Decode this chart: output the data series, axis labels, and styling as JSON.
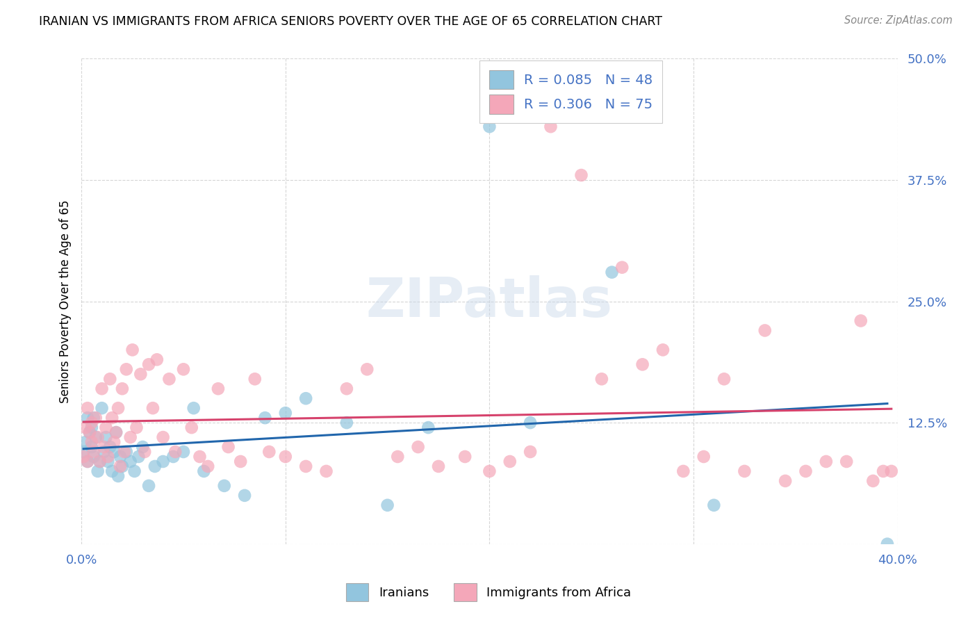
{
  "title": "IRANIAN VS IMMIGRANTS FROM AFRICA SENIORS POVERTY OVER THE AGE OF 65 CORRELATION CHART",
  "source": "Source: ZipAtlas.com",
  "ylabel": "Seniors Poverty Over the Age of 65",
  "xlim": [
    0.0,
    0.4
  ],
  "ylim": [
    0.0,
    0.5
  ],
  "xticks": [
    0.0,
    0.1,
    0.2,
    0.3,
    0.4
  ],
  "yticks": [
    0.0,
    0.125,
    0.25,
    0.375,
    0.5
  ],
  "xticklabels": [
    "0.0%",
    "",
    "",
    "",
    "40.0%"
  ],
  "yticklabels": [
    "",
    "12.5%",
    "25.0%",
    "37.5%",
    "50.0%"
  ],
  "iranians_R": 0.085,
  "iranians_N": 48,
  "africa_R": 0.306,
  "africa_N": 75,
  "iranians_color": "#92c5de",
  "iranians_line_color": "#2166ac",
  "africa_color": "#f4a7b9",
  "africa_line_color": "#d6426c",
  "legend_label_iranians": "Iranians",
  "legend_label_africa": "Immigrants from Africa",
  "iranians_x": [
    0.001,
    0.002,
    0.003,
    0.003,
    0.004,
    0.005,
    0.005,
    0.006,
    0.006,
    0.007,
    0.008,
    0.009,
    0.01,
    0.011,
    0.012,
    0.013,
    0.014,
    0.015,
    0.016,
    0.017,
    0.018,
    0.019,
    0.02,
    0.022,
    0.024,
    0.026,
    0.028,
    0.03,
    0.033,
    0.036,
    0.04,
    0.045,
    0.05,
    0.055,
    0.06,
    0.07,
    0.08,
    0.09,
    0.1,
    0.11,
    0.13,
    0.15,
    0.17,
    0.2,
    0.22,
    0.26,
    0.31,
    0.395
  ],
  "iranians_y": [
    0.095,
    0.105,
    0.13,
    0.085,
    0.115,
    0.1,
    0.12,
    0.09,
    0.13,
    0.11,
    0.075,
    0.085,
    0.14,
    0.095,
    0.11,
    0.085,
    0.1,
    0.075,
    0.095,
    0.115,
    0.07,
    0.09,
    0.08,
    0.095,
    0.085,
    0.075,
    0.09,
    0.1,
    0.06,
    0.08,
    0.085,
    0.09,
    0.095,
    0.14,
    0.075,
    0.06,
    0.05,
    0.13,
    0.135,
    0.15,
    0.125,
    0.04,
    0.12,
    0.43,
    0.125,
    0.28,
    0.04,
    0.0
  ],
  "africa_x": [
    0.001,
    0.002,
    0.003,
    0.003,
    0.004,
    0.005,
    0.005,
    0.006,
    0.007,
    0.008,
    0.009,
    0.01,
    0.011,
    0.012,
    0.013,
    0.014,
    0.015,
    0.016,
    0.017,
    0.018,
    0.019,
    0.02,
    0.021,
    0.022,
    0.024,
    0.025,
    0.027,
    0.029,
    0.031,
    0.033,
    0.035,
    0.037,
    0.04,
    0.043,
    0.046,
    0.05,
    0.054,
    0.058,
    0.062,
    0.067,
    0.072,
    0.078,
    0.085,
    0.092,
    0.1,
    0.11,
    0.12,
    0.13,
    0.14,
    0.155,
    0.165,
    0.175,
    0.188,
    0.2,
    0.21,
    0.22,
    0.23,
    0.245,
    0.255,
    0.265,
    0.275,
    0.285,
    0.295,
    0.305,
    0.315,
    0.325,
    0.335,
    0.345,
    0.355,
    0.365,
    0.375,
    0.382,
    0.388,
    0.393,
    0.397
  ],
  "africa_y": [
    0.09,
    0.12,
    0.14,
    0.085,
    0.115,
    0.105,
    0.125,
    0.095,
    0.13,
    0.11,
    0.085,
    0.16,
    0.1,
    0.12,
    0.09,
    0.17,
    0.13,
    0.105,
    0.115,
    0.14,
    0.08,
    0.16,
    0.095,
    0.18,
    0.11,
    0.2,
    0.12,
    0.175,
    0.095,
    0.185,
    0.14,
    0.19,
    0.11,
    0.17,
    0.095,
    0.18,
    0.12,
    0.09,
    0.08,
    0.16,
    0.1,
    0.085,
    0.17,
    0.095,
    0.09,
    0.08,
    0.075,
    0.16,
    0.18,
    0.09,
    0.1,
    0.08,
    0.09,
    0.075,
    0.085,
    0.095,
    0.43,
    0.38,
    0.17,
    0.285,
    0.185,
    0.2,
    0.075,
    0.09,
    0.17,
    0.075,
    0.22,
    0.065,
    0.075,
    0.085,
    0.085,
    0.23,
    0.065,
    0.075,
    0.075
  ]
}
